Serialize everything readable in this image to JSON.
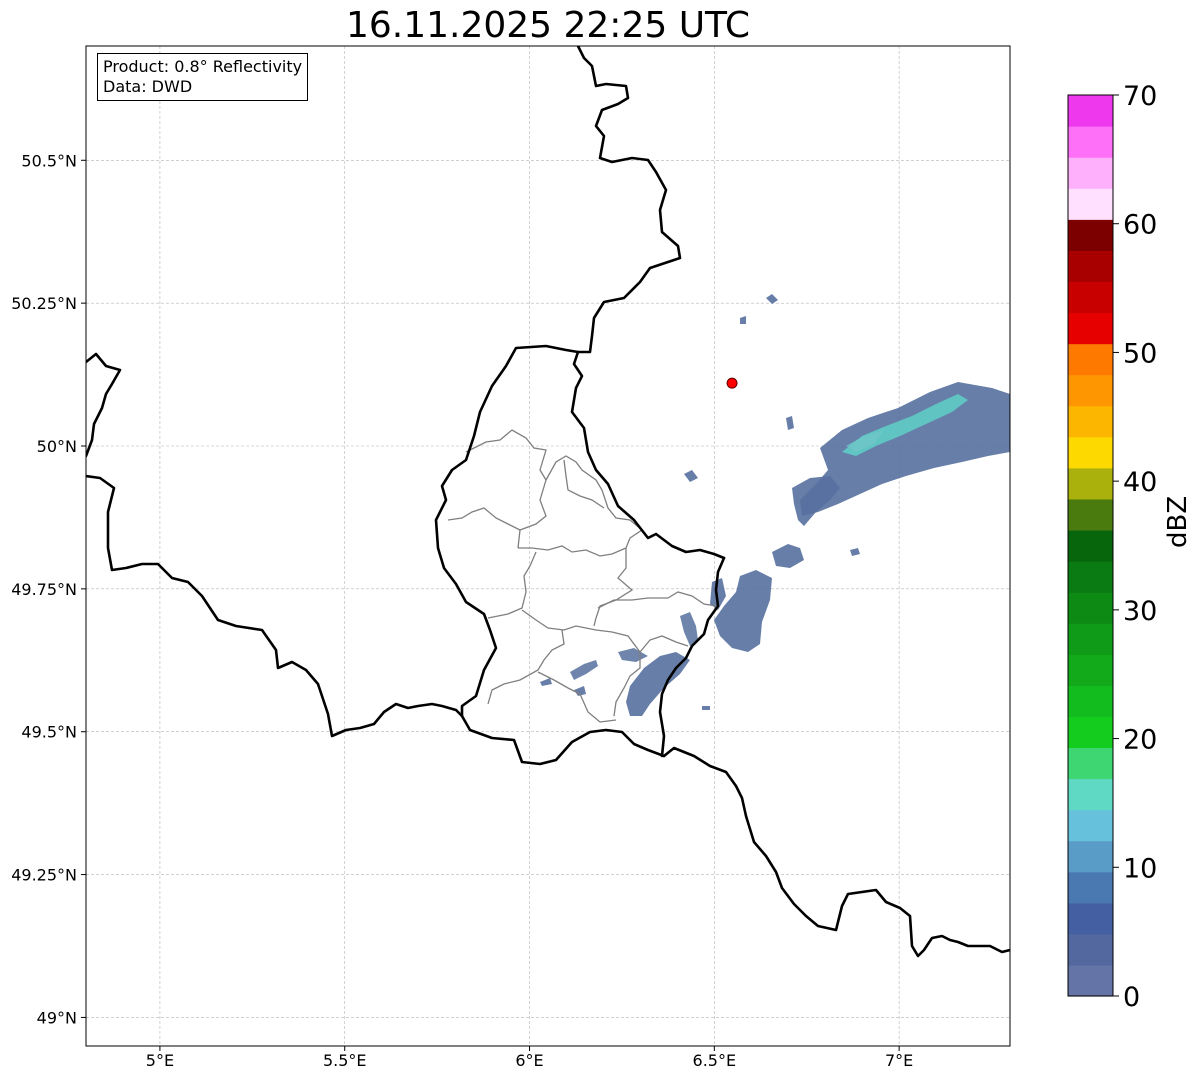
{
  "title": "16.11.2025 22:25 UTC",
  "info_box": {
    "product_line": "Product: 0.8° Reflectivity",
    "source_line": "Data: DWD"
  },
  "lon_ticks": [
    {
      "value": 5.0,
      "label": "5°E"
    },
    {
      "value": 5.5,
      "label": "5.5°E"
    },
    {
      "value": 6.0,
      "label": "6°E"
    },
    {
      "value": 6.5,
      "label": "6.5°E"
    },
    {
      "value": 7.0,
      "label": "7°E"
    }
  ],
  "lat_ticks": [
    {
      "value": 49.0,
      "label": "49°N"
    },
    {
      "value": 49.25,
      "label": "49.25°N"
    },
    {
      "value": 49.5,
      "label": "49.5°N"
    },
    {
      "value": 49.75,
      "label": "49.75°N"
    },
    {
      "value": 50.0,
      "label": "50°N"
    },
    {
      "value": 50.25,
      "label": "50.25°N"
    },
    {
      "value": 50.5,
      "label": "50.5°N"
    }
  ],
  "extent": {
    "lon": [
      4.8,
      7.3
    ],
    "lat": [
      48.95,
      50.7
    ]
  },
  "radar_site": {
    "lon": 6.548,
    "lat": 50.11,
    "color": "#ff0000"
  },
  "colorbar": {
    "label": "dBZ",
    "min": 0,
    "max": 70,
    "tick_values": [
      0,
      10,
      20,
      30,
      40,
      50,
      60,
      70
    ],
    "tick_labels": [
      "0",
      "10",
      "20",
      "30",
      "40",
      "50",
      "60",
      "70"
    ],
    "colors": [
      "#6574a6",
      "#53689f",
      "#4460a2",
      "#4a79b2",
      "#5a9cc8",
      "#66c2dc",
      "#5fd8c4",
      "#3dd673",
      "#14cc1e",
      "#12bc1f",
      "#12a91a",
      "#0f9a17",
      "#0c8a14",
      "#0a7a12",
      "#07650c",
      "#4a7b0e",
      "#aab00c",
      "#fdd900",
      "#fdb600",
      "#fd9600",
      "#fd7900",
      "#e60000",
      "#c80000",
      "#a80000",
      "#7c0000",
      "#ffe0fe",
      "#ffb0fc",
      "#ff70f8",
      "#ee38ee"
    ]
  },
  "map_colors": {
    "border": "#000000",
    "subdivision": "#7f7f7f",
    "grid": "#b4b4b4",
    "weak_echo": "#5a72a8",
    "core_echo": "#5fd0c8"
  }
}
